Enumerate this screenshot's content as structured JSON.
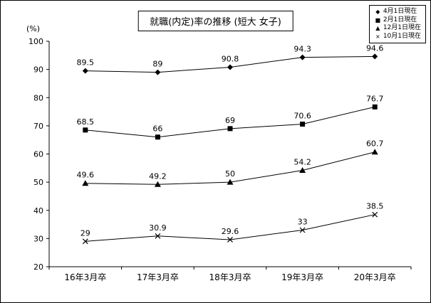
{
  "chart_data": {
    "type": "line",
    "title": "就職(内定)率の推移 (短大 女子)",
    "ylabel": "(%)",
    "xlabel": "",
    "categories": [
      "16年3月卒",
      "17年3月卒",
      "18年3月卒",
      "19年3月卒",
      "20年3月卒"
    ],
    "series": [
      {
        "name": "4月1日現在",
        "marker": "diamond",
        "legend_glyph": "◆",
        "values": [
          89.5,
          89,
          90.8,
          94.3,
          94.6
        ]
      },
      {
        "name": "2月1日現在",
        "marker": "square",
        "legend_glyph": "■",
        "values": [
          68.5,
          66,
          69,
          70.6,
          76.7
        ]
      },
      {
        "name": "12月1日現在",
        "marker": "triangle",
        "legend_glyph": "▲",
        "values": [
          49.6,
          49.2,
          50,
          54.2,
          60.7
        ]
      },
      {
        "name": "10月1日現在",
        "marker": "x",
        "legend_glyph": "×",
        "values": [
          29,
          30.9,
          29.6,
          33,
          38.5
        ]
      }
    ],
    "ylim": [
      20,
      100
    ],
    "ytick_step": 10,
    "grid": false,
    "legend_position": "top-right",
    "line_color": "#000000",
    "background_color": "#ffffff"
  }
}
